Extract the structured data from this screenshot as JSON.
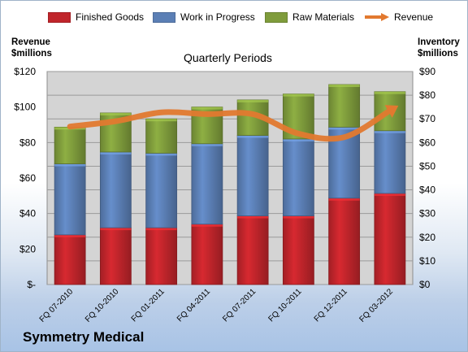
{
  "company": "Symmetry Medical",
  "chart_data": {
    "type": "bar",
    "stacked": true,
    "title": "Quarterly Periods",
    "xlabel": "",
    "ylabel_left": "Revenue $millions",
    "ylabel_right": "Inventory $millions",
    "categories": [
      "FQ 07-2010",
      "FQ 10-2010",
      "FQ 01-2011",
      "FQ 04-2011",
      "FQ 07-2011",
      "FQ 10-2011",
      "FQ 12-2011",
      "FQ 03-2012"
    ],
    "inventory_series": [
      {
        "name": "Finished Goods",
        "color": "#c0252b",
        "values": [
          21,
          24,
          24,
          25.5,
          29,
          29,
          36.5,
          38.5
        ]
      },
      {
        "name": "Work in Progress",
        "color": "#5b7fb5",
        "values": [
          30,
          32,
          31.5,
          34,
          34,
          32.5,
          30,
          26.5
        ]
      },
      {
        "name": "Raw Materials",
        "color": "#7f9c3c",
        "values": [
          15.5,
          16.5,
          14.5,
          15.5,
          15,
          19,
          18,
          16.5
        ]
      }
    ],
    "revenue_series": {
      "name": "Revenue",
      "color": "#e2792f",
      "values": [
        89,
        92,
        97,
        96,
        96,
        85,
        83,
        98
      ]
    },
    "left_axis": {
      "ylim": [
        0,
        120
      ],
      "ticks": [
        "$-",
        "$20",
        "$40",
        "$60",
        "$80",
        "$100",
        "$120"
      ]
    },
    "right_axis": {
      "ylim": [
        0,
        90
      ],
      "ticks": [
        "$0",
        "$10",
        "$20",
        "$30",
        "$40",
        "$50",
        "$60",
        "$70",
        "$80",
        "$90"
      ]
    },
    "grid": true,
    "legend": "top"
  },
  "legend": {
    "finished_goods": "Finished Goods",
    "work_in_progress": "Work in Progress",
    "raw_materials": "Raw Materials",
    "revenue": "Revenue"
  },
  "labels": {
    "left_axis_line1": "Revenue",
    "left_axis_line2": "$millions",
    "right_axis_line1": "Inventory",
    "right_axis_line2": "$millions",
    "title": "Quarterly Periods"
  }
}
